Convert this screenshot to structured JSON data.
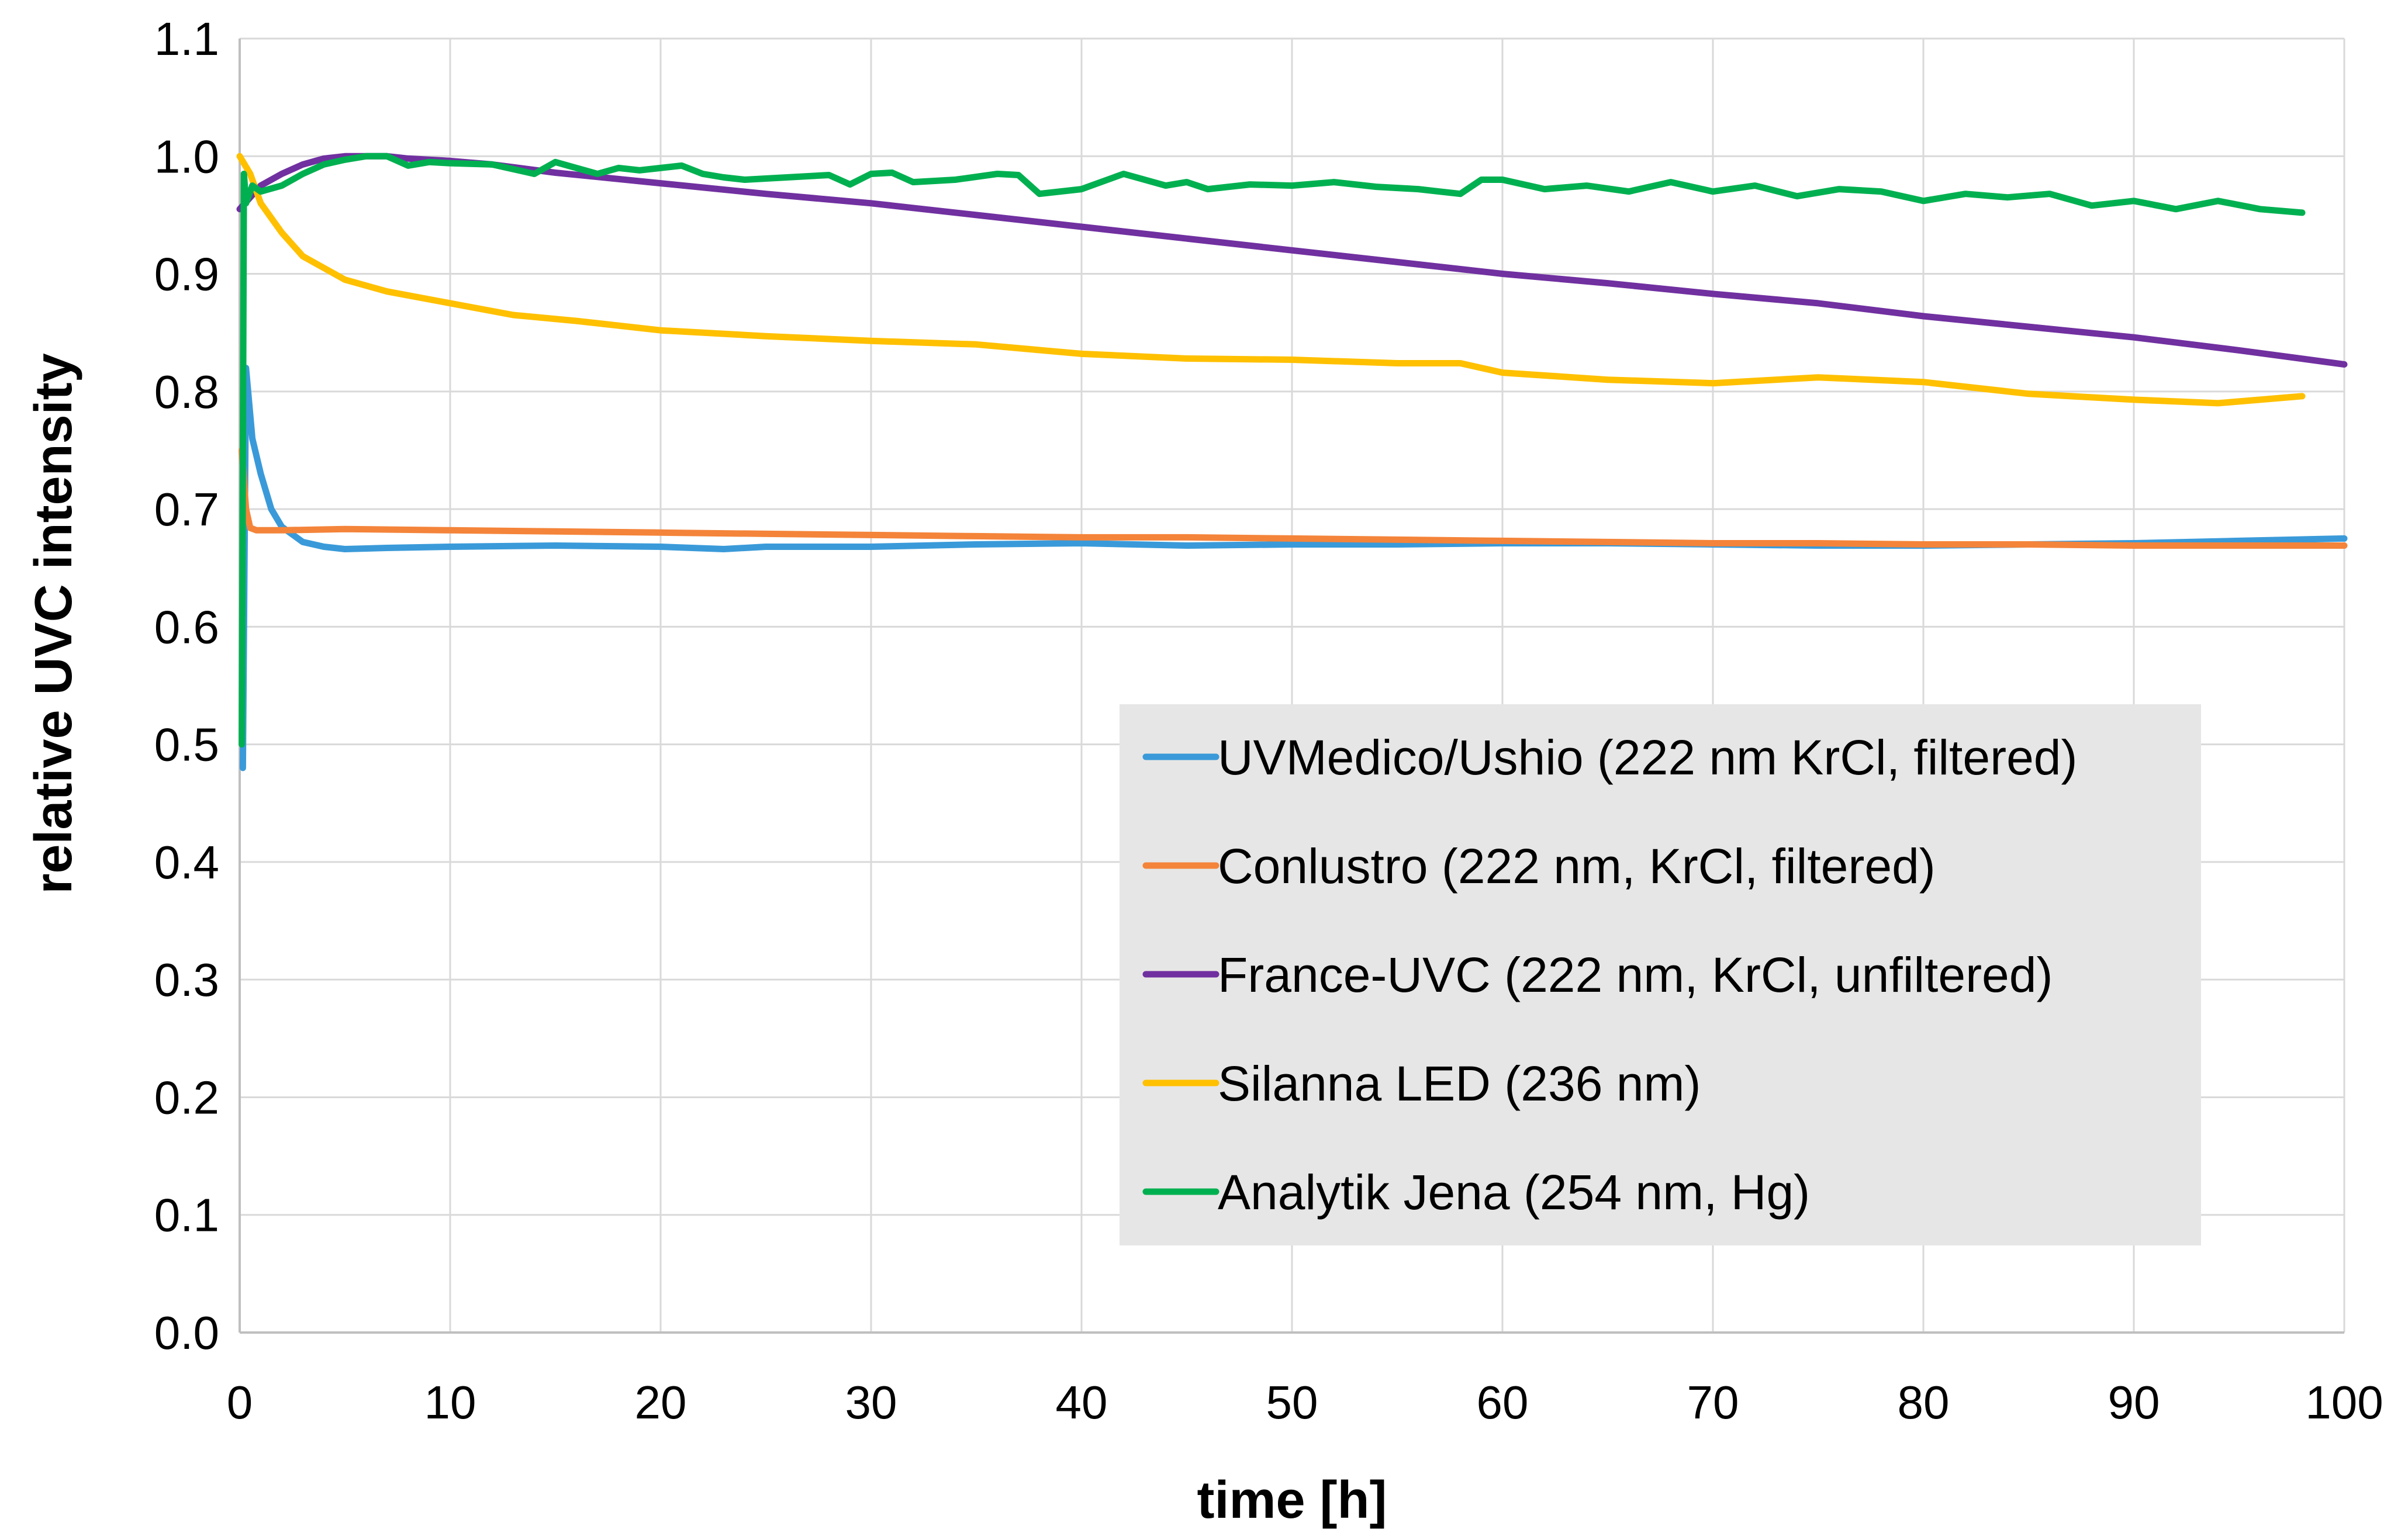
{
  "chart_data": {
    "type": "line",
    "title": "",
    "xlabel": "time [h]",
    "ylabel": "relative UVC intensity",
    "xlim": [
      0,
      100
    ],
    "ylim": [
      0,
      1.1
    ],
    "grid": true,
    "legend_position": "lower-right",
    "x_ticks": [
      "0",
      "10",
      "20",
      "30",
      "40",
      "50",
      "60",
      "70",
      "80",
      "90",
      "100"
    ],
    "y_ticks": [
      "0.0",
      "0.1",
      "0.2",
      "0.3",
      "0.4",
      "0.5",
      "0.6",
      "0.7",
      "0.8",
      "0.9",
      "1.0",
      "1.1"
    ],
    "series": [
      {
        "name": "UVMedico/Ushio (222 nm KrCl, filtered)",
        "color": "#3A9AD9",
        "x": [
          0.15,
          0.3,
          0.6,
          1,
          1.5,
          2,
          3,
          4,
          5,
          7,
          10,
          15,
          20,
          23,
          25,
          30,
          35,
          40,
          45,
          50,
          55,
          60,
          65,
          70,
          75,
          80,
          85,
          90,
          95,
          100
        ],
        "y": [
          0.48,
          0.82,
          0.76,
          0.73,
          0.7,
          0.685,
          0.672,
          0.668,
          0.666,
          0.667,
          0.668,
          0.669,
          0.668,
          0.666,
          0.668,
          0.668,
          0.67,
          0.671,
          0.669,
          0.67,
          0.67,
          0.671,
          0.671,
          0.67,
          0.669,
          0.669,
          0.67,
          0.671,
          0.673,
          0.675
        ]
      },
      {
        "name": "Conlustro (222 nm, KrCl, filtered)",
        "color": "#F4843A",
        "x": [
          0.1,
          0.3,
          0.5,
          0.8,
          2,
          5,
          10,
          15,
          20,
          25,
          30,
          35,
          40,
          45,
          50,
          55,
          60,
          65,
          70,
          75,
          80,
          85,
          90,
          95,
          100
        ],
        "y": [
          0.75,
          0.7,
          0.684,
          0.682,
          0.682,
          0.683,
          0.682,
          0.681,
          0.68,
          0.679,
          0.678,
          0.677,
          0.676,
          0.676,
          0.675,
          0.674,
          0.673,
          0.672,
          0.671,
          0.671,
          0.67,
          0.67,
          0.669,
          0.669,
          0.669
        ]
      },
      {
        "name": "France-UVC (222 nm, KrCl, unfiltered)",
        "color": "#7030A0",
        "x": [
          0,
          0.5,
          1,
          2,
          3,
          4,
          5,
          6,
          7,
          8,
          10,
          12,
          15,
          20,
          25,
          30,
          35,
          40,
          45,
          50,
          55,
          60,
          65,
          70,
          75,
          80,
          85,
          90,
          95,
          100
        ],
        "y": [
          0.955,
          0.965,
          0.975,
          0.985,
          0.993,
          0.998,
          1.0,
          1.0,
          1.0,
          0.998,
          0.996,
          0.993,
          0.986,
          0.977,
          0.968,
          0.96,
          0.95,
          0.94,
          0.93,
          0.92,
          0.91,
          0.9,
          0.892,
          0.883,
          0.875,
          0.864,
          0.855,
          0.846,
          0.835,
          0.823
        ]
      },
      {
        "name": "Silanna LED (236 nm)",
        "color": "#FFC000",
        "x": [
          0,
          0.5,
          1,
          2,
          3,
          4,
          5,
          7,
          10,
          13,
          16,
          20,
          25,
          30,
          35,
          40,
          45,
          50,
          55,
          58,
          60,
          65,
          70,
          75,
          80,
          85,
          90,
          94,
          98
        ],
        "y": [
          1.0,
          0.985,
          0.96,
          0.935,
          0.915,
          0.905,
          0.895,
          0.885,
          0.875,
          0.865,
          0.86,
          0.852,
          0.847,
          0.843,
          0.84,
          0.832,
          0.828,
          0.827,
          0.824,
          0.824,
          0.816,
          0.81,
          0.807,
          0.812,
          0.808,
          0.798,
          0.793,
          0.79,
          0.796
        ]
      },
      {
        "name": "Analytik Jena (254 nm, Hg)",
        "color": "#00B050",
        "x": [
          0.1,
          0.2,
          0.3,
          0.6,
          1,
          2,
          3,
          4,
          5,
          6,
          7,
          8,
          9,
          10,
          12,
          14,
          15,
          16,
          17,
          18,
          19,
          20,
          21,
          22,
          23,
          24,
          26,
          28,
          29,
          30,
          31,
          32,
          34,
          36,
          37,
          38,
          40,
          42,
          44,
          45,
          46,
          48,
          50,
          52,
          54,
          56,
          57,
          58,
          59,
          60,
          62,
          64,
          66,
          68,
          70,
          72,
          74,
          76,
          78,
          80,
          82,
          84,
          86,
          88,
          90,
          92,
          94,
          96,
          98
        ],
        "y": [
          0.5,
          0.985,
          0.96,
          0.975,
          0.97,
          0.975,
          0.985,
          0.993,
          0.997,
          1.0,
          1.0,
          0.992,
          0.995,
          0.994,
          0.993,
          0.985,
          0.995,
          0.99,
          0.985,
          0.99,
          0.988,
          0.99,
          0.992,
          0.985,
          0.982,
          0.98,
          0.982,
          0.984,
          0.976,
          0.985,
          0.986,
          0.978,
          0.98,
          0.985,
          0.984,
          0.968,
          0.972,
          0.985,
          0.975,
          0.978,
          0.972,
          0.976,
          0.975,
          0.978,
          0.974,
          0.972,
          0.97,
          0.968,
          0.98,
          0.98,
          0.972,
          0.975,
          0.97,
          0.978,
          0.97,
          0.975,
          0.966,
          0.972,
          0.97,
          0.962,
          0.968,
          0.965,
          0.968,
          0.958,
          0.962,
          0.955,
          0.962,
          0.955,
          0.952
        ]
      }
    ]
  }
}
